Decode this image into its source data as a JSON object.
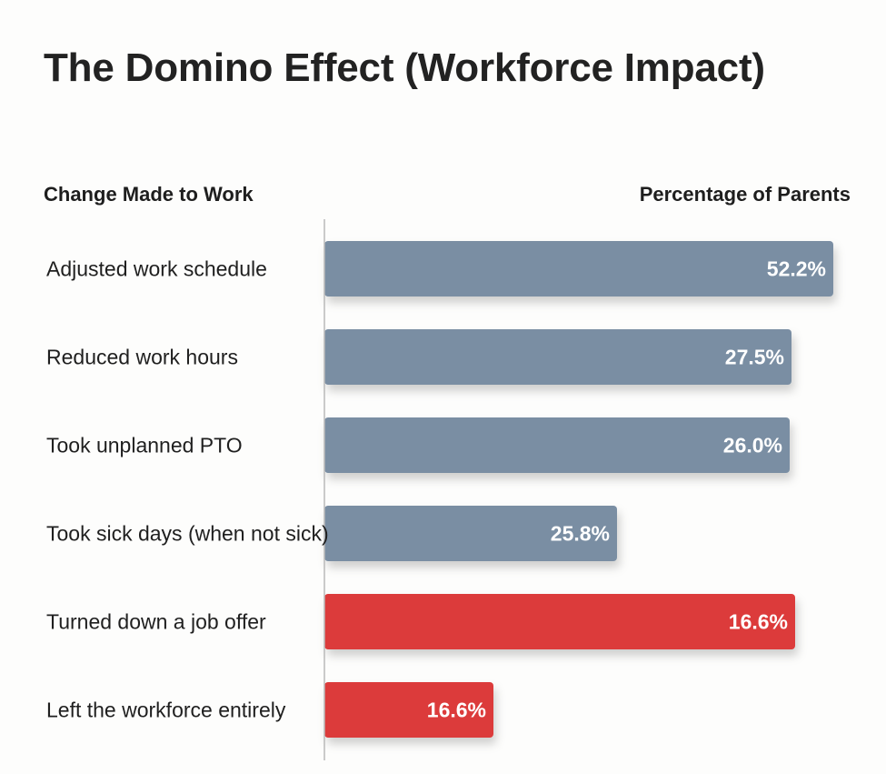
{
  "chart_data": {
    "type": "bar",
    "orientation": "horizontal",
    "title": "The Domino Effect (Workforce Impact)",
    "category_header": "Change Made to Work",
    "value_header": "Percentage of Parents",
    "categories": [
      "Adjusted work schedule",
      "Reduced work hours",
      "Took unplanned PTO",
      "Took sick days (when not sick)",
      "Turned down a job offer",
      "Left the workforce entirely"
    ],
    "values": [
      52.2,
      27.5,
      26.0,
      25.8,
      16.6,
      16.6
    ],
    "value_labels": [
      "52.2%",
      "27.5%",
      "26.0%",
      "25.8%",
      "16.6%",
      "16.6%"
    ],
    "value_unit": "%",
    "colors": [
      "#7a8ea3",
      "#7a8ea3",
      "#7a8ea3",
      "#7a8ea3",
      "#dc3a3a",
      "#dc3a3a"
    ],
    "grid": false
  }
}
